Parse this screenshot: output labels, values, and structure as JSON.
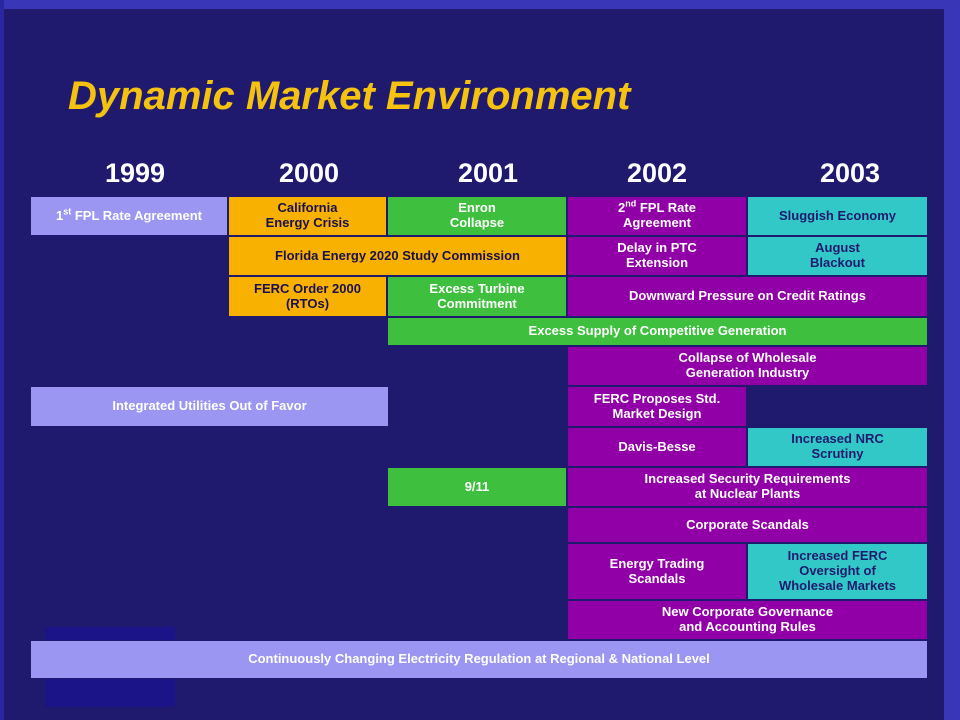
{
  "title": "Dynamic Market Environment",
  "years": [
    "1999",
    "2000",
    "2001",
    "2002",
    "2003"
  ],
  "colors": {
    "background": "#1f1a6e",
    "title": "#f5c20f",
    "light_blue": "#9b96f2",
    "orange": "#f9b100",
    "green": "#3ec03e",
    "purple": "#9100a6",
    "cyan": "#32c8c8"
  },
  "events": {
    "rate_agreement_1": {
      "prefix": "1",
      "sup": "st",
      "rest": " FPL Rate Agreement"
    },
    "california_crisis": "California\nEnergy Crisis",
    "enron_collapse": "Enron\nCollapse",
    "rate_agreement_2": {
      "prefix": "2",
      "sup": "nd",
      "rest": " FPL Rate\nAgreement"
    },
    "sluggish_economy": "Sluggish Economy",
    "florida_energy_2020": "Florida Energy 2020 Study Commission",
    "delay_ptc": "Delay in PTC\nExtension",
    "august_blackout": "August\nBlackout",
    "ferc_order_2000": "FERC Order 2000\n(RTOs)",
    "excess_turbine": "Excess Turbine\nCommitment",
    "downward_pressure": "Downward Pressure on Credit Ratings",
    "excess_supply": "Excess Supply of Competitive Generation",
    "collapse_wholesale": "Collapse of Wholesale\nGeneration Industry",
    "integrated_utilities": "Integrated Utilities Out of Favor",
    "ferc_market_design": "FERC Proposes Std.\nMarket Design",
    "davis_besse": "Davis-Besse",
    "nrc_scrutiny": "Increased NRC\nScrutiny",
    "nine_eleven": "9/11",
    "security_requirements": "Increased Security Requirements\nat Nuclear Plants",
    "corporate_scandals": "Corporate Scandals",
    "energy_trading": "Energy Trading\nScandals",
    "ferc_oversight": "Increased FERC\nOversight of\nWholesale Markets",
    "governance_rules": "New Corporate Governance\nand Accounting Rules",
    "continuous_regulation": "Continuously Changing Electricity Regulation at Regional & National Level"
  }
}
